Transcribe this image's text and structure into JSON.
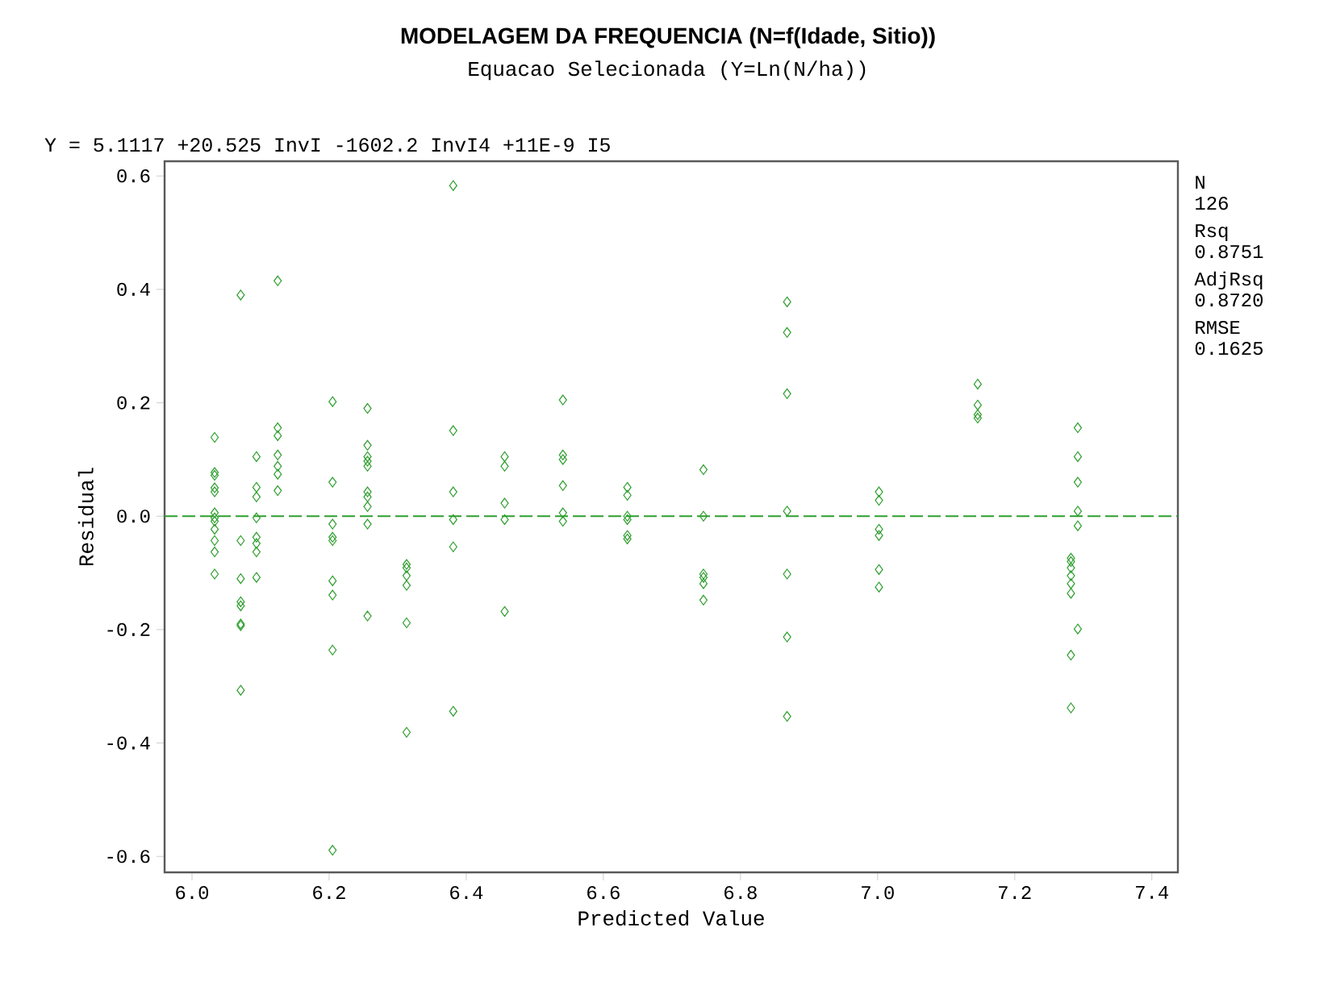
{
  "chart_data": {
    "type": "scatter",
    "title": "MODELAGEM DA FREQUENCIA (N=f(Idade, Sitio))",
    "subtitle": "Equacao Selecionada (Y=Ln(N/ha))",
    "xlabel": "Predicted Value",
    "ylabel": "Residual",
    "annotations": [
      "Y = 5.1117 +20.525 InvI -1602.2 InvI4 +11E-9 I5",
      "N",
      "126",
      "Rsq",
      "0.8751",
      "AdjRsq",
      "0.8720",
      "RMSE",
      "0.1625"
    ],
    "series": [
      {
        "color": "#2e9e2e",
        "marker": "diamond",
        "x": [
          6.033,
          6.033,
          6.033,
          6.033,
          6.033,
          6.033,
          6.033,
          6.033,
          6.033,
          6.033,
          6.033,
          6.033,
          6.071,
          6.071,
          6.071,
          6.071,
          6.071,
          6.071,
          6.071,
          6.071,
          6.094,
          6.094,
          6.094,
          6.094,
          6.094,
          6.094,
          6.094,
          6.094,
          6.125,
          6.125,
          6.125,
          6.125,
          6.125,
          6.125,
          6.125,
          6.205,
          6.205,
          6.205,
          6.205,
          6.205,
          6.205,
          6.205,
          6.205,
          6.205,
          6.256,
          6.256,
          6.256,
          6.256,
          6.256,
          6.256,
          6.256,
          6.256,
          6.256,
          6.256,
          6.313,
          6.313,
          6.313,
          6.313,
          6.313,
          6.313,
          6.381,
          6.381,
          6.381,
          6.381,
          6.381,
          6.381,
          6.456,
          6.456,
          6.456,
          6.456,
          6.456,
          6.541,
          6.541,
          6.541,
          6.541,
          6.541,
          6.541,
          6.635,
          6.635,
          6.635,
          6.635,
          6.635,
          6.635,
          6.746,
          6.746,
          6.746,
          6.746,
          6.746,
          6.746,
          6.868,
          6.868,
          6.868,
          6.868,
          6.868,
          6.868,
          6.868,
          7.002,
          7.002,
          7.002,
          7.002,
          7.002,
          7.002,
          7.146,
          7.146,
          7.146,
          7.146,
          7.292,
          7.292,
          7.292,
          7.292,
          7.292,
          7.292,
          7.282,
          7.282,
          7.282,
          7.282,
          7.282,
          7.282,
          7.282,
          7.282
        ],
        "values": [
          0.139,
          0.077,
          0.072,
          0.05,
          0.043,
          0.006,
          -0.003,
          -0.009,
          -0.023,
          -0.043,
          -0.063,
          -0.102,
          0.39,
          -0.043,
          -0.11,
          -0.151,
          -0.158,
          -0.19,
          -0.193,
          -0.307,
          0.105,
          0.051,
          0.034,
          -0.003,
          -0.037,
          -0.048,
          -0.063,
          -0.108,
          0.415,
          0.156,
          0.142,
          0.108,
          0.088,
          0.074,
          0.045,
          0.202,
          0.06,
          -0.014,
          -0.037,
          -0.043,
          -0.114,
          -0.139,
          -0.236,
          -0.589,
          0.19,
          0.125,
          0.105,
          0.097,
          0.088,
          0.043,
          0.034,
          0.017,
          -0.014,
          -0.176,
          -0.085,
          -0.091,
          -0.105,
          -0.122,
          -0.188,
          -0.381,
          0.583,
          0.151,
          0.043,
          -0.006,
          -0.054,
          -0.344,
          0.105,
          0.088,
          0.023,
          -0.006,
          -0.168,
          0.205,
          0.108,
          0.1,
          0.054,
          0.006,
          -0.009,
          0.051,
          0.037,
          0,
          -0.006,
          -0.034,
          -0.04,
          0.082,
          0,
          -0.102,
          -0.108,
          -0.119,
          -0.148,
          0.378,
          0.324,
          0.216,
          0.009,
          -0.102,
          -0.213,
          -0.353,
          0.043,
          0.028,
          -0.023,
          -0.034,
          -0.094,
          -0.125,
          0.233,
          0.196,
          0.179,
          0.173,
          0.156,
          0.105,
          0.06,
          0.009,
          -0.017,
          -0.199,
          -0.074,
          -0.08,
          -0.091,
          -0.105,
          -0.119,
          -0.136,
          -0.245,
          -0.338
        ]
      }
    ],
    "xlim": [
      5.96,
      7.438
    ],
    "ylim": [
      -0.628,
      0.626
    ],
    "xticks": [
      {
        "value": 6,
        "label": "6.0"
      },
      6.2,
      6.4,
      6.6,
      6.8,
      {
        "value": 7,
        "label": "7.0"
      },
      7.2,
      7.4
    ],
    "yticks": [
      -0.6,
      -0.4,
      -0.2,
      {
        "value": 0,
        "label": "0.0"
      },
      0.2,
      0.4,
      0.6
    ],
    "ref_lines": [
      {
        "axis": "y",
        "value": 0,
        "color": "#2e9e2e",
        "line_style": "dashed"
      }
    ]
  }
}
